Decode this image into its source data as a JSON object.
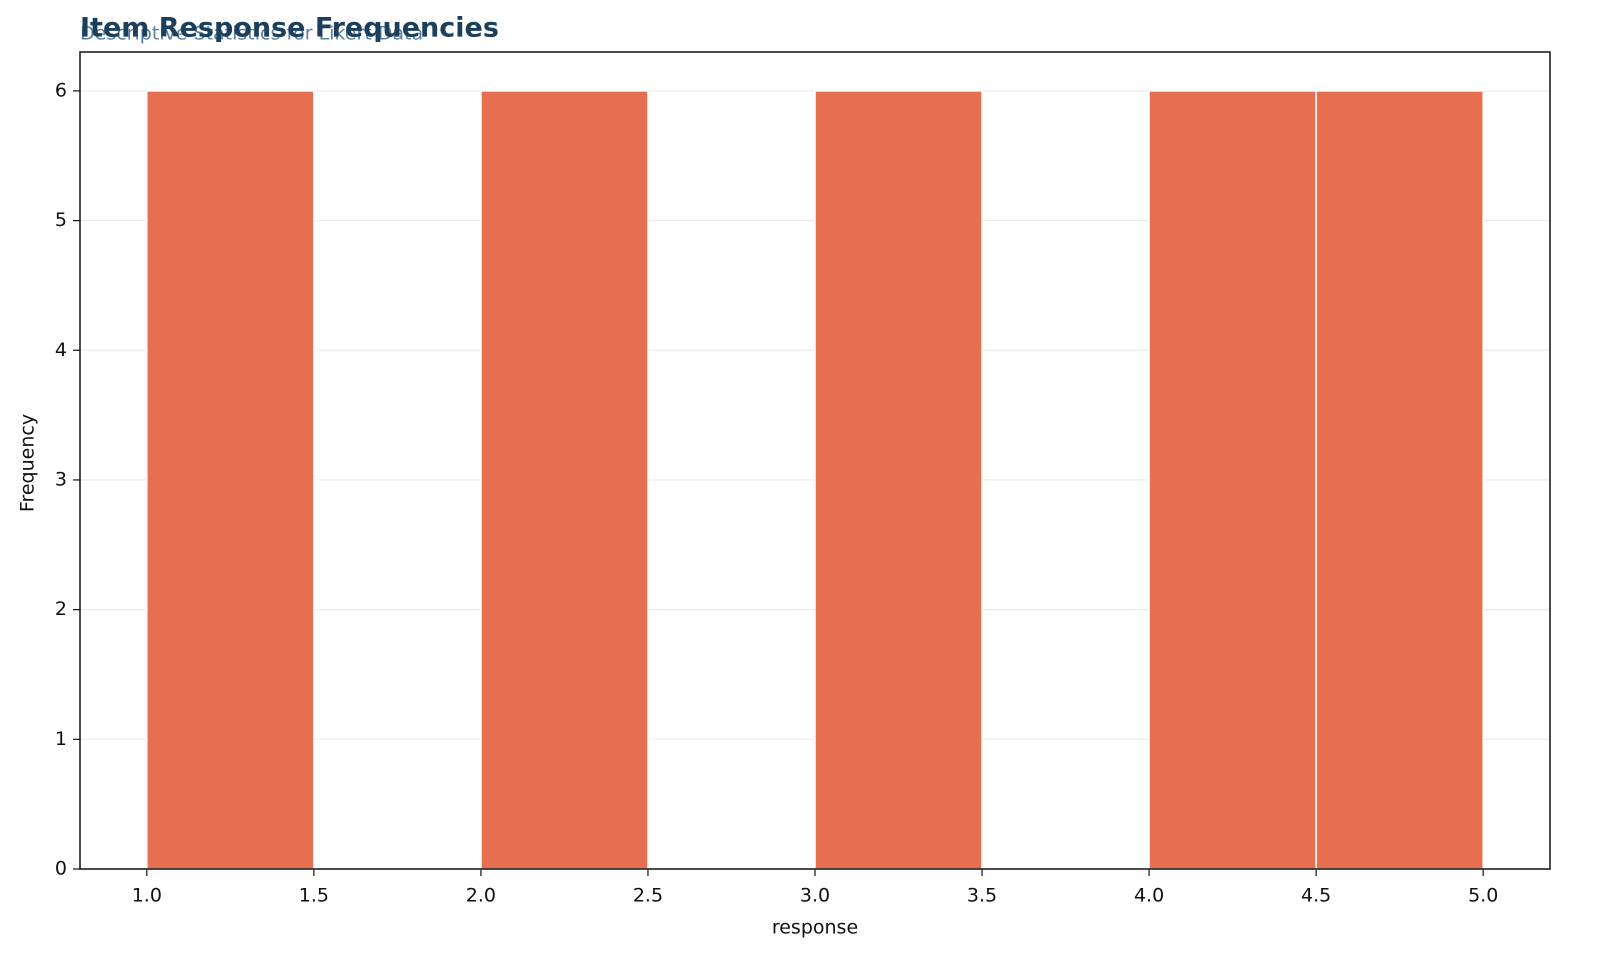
{
  "chart_data": {
    "type": "histogram",
    "title": "Item Response Frequencies",
    "subtitle": "Descriptive Statistics for Likert Data",
    "x_label": "response",
    "y_label": "Frequency",
    "bins": [
      1.0,
      1.5,
      2.0,
      2.5,
      3.0,
      3.5,
      4.0,
      4.5,
      5.0
    ],
    "values": [
      6,
      0,
      6,
      0,
      6,
      0,
      6,
      6
    ],
    "color": "#e56f50",
    "xlim": [
      0.8,
      5.2
    ],
    "xticks": [
      {
        "value": 1,
        "label": "1.0"
      },
      {
        "value": 1.5,
        "label": "1.5"
      },
      {
        "value": 2,
        "label": "2.0"
      },
      {
        "value": 2.5,
        "label": "2.5"
      },
      {
        "value": 3,
        "label": "3.0"
      },
      {
        "value": 3.5,
        "label": "3.5"
      },
      {
        "value": 4,
        "label": "4.0"
      },
      {
        "value": 4.5,
        "label": "4.5"
      },
      {
        "value": 5,
        "label": "5.0"
      }
    ],
    "ylim": [
      0,
      6.3
    ],
    "yticks": [
      0,
      1,
      2,
      3,
      4,
      5,
      6
    ],
    "grid": true
  }
}
